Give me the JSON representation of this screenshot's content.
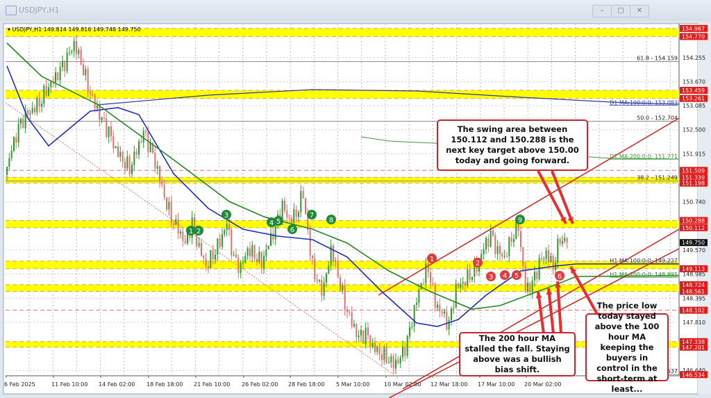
{
  "window": {
    "title": "USDJPY,H1",
    "buttons": [
      "minimize",
      "maximize",
      "close"
    ]
  },
  "header": {
    "symbol": "USDJPY,H1",
    "ohlc": "149.814 149.816 149.748 149.750"
  },
  "colors": {
    "band": "#ffff00",
    "level_label": "#e21b1b",
    "ma100": "#1e2bc8",
    "ma200": "#1f8a1f",
    "channel": "#d62020",
    "bull": "#2a9a2a",
    "bear": "#e07070",
    "marker_green": "#1f8a3a",
    "marker_red": "#e33b3b"
  },
  "chart_data": {
    "type": "candlestick",
    "title": "",
    "x_ticks": [
      "6 Feb 2025",
      "11 Feb 10:00",
      "14 Feb 02:00",
      "18 Feb 18:00",
      "21 Feb 10:00",
      "26 Feb 02:00",
      "28 Feb 18:00",
      "5 Mar 10:00",
      "10 Mar 02:00",
      "12 Mar 18:00",
      "17 Mar 10:00",
      "20 Mar 02:00"
    ],
    "y_ticks": [
      "154.255",
      "153.670",
      "153.085",
      "152.500",
      "151.915",
      "150.740",
      "149.570",
      "148.985",
      "148.395",
      "147.810",
      "146.640"
    ],
    "ylim": [
      146.5,
      155.1
    ],
    "approx_closes": [
      151.4,
      152.0,
      152.5,
      152.8,
      153.0,
      153.2,
      153.5,
      153.7,
      153.9,
      154.2,
      154.6,
      154.2,
      153.6,
      153.1,
      152.7,
      152.4,
      152.0,
      151.8,
      151.6,
      152.0,
      152.4,
      152.0,
      151.5,
      150.9,
      150.4,
      150.1,
      149.7,
      150.2,
      149.6,
      149.2,
      149.5,
      149.8,
      150.2,
      149.3,
      149.1,
      149.6,
      149.5,
      149.3,
      149.7,
      150.1,
      150.6,
      150.3,
      150.5,
      151.0,
      149.5,
      148.7,
      148.6,
      149.6,
      149.0,
      148.3,
      147.8,
      147.4,
      147.5,
      147.2,
      147.1,
      147.0,
      146.8,
      146.9,
      147.3,
      148.1,
      148.8,
      149.2,
      148.3,
      148.0,
      147.7,
      148.6,
      148.8,
      149.0,
      149.2,
      149.6,
      149.9,
      149.5,
      149.4,
      149.9,
      150.2,
      148.6,
      148.7,
      149.2,
      149.5,
      149.2,
      149.9,
      149.75
    ],
    "current_price": "149.750",
    "bands": [
      [
        "154.967",
        "154.770"
      ],
      [
        "153.459",
        "153.261"
      ],
      [
        "151.339",
        "151.198"
      ],
      [
        "150.288",
        "150.112"
      ],
      [
        "149.300",
        "149.113"
      ],
      [
        "148.724",
        "148.561"
      ],
      [
        "147.338",
        "147.201"
      ]
    ],
    "dashed_levels": [
      "151.509",
      "148.102"
    ],
    "fib_levels": [
      {
        "label": "61.8 - 154.159",
        "price": 154.159
      },
      {
        "label": "50.0 - 152.704",
        "price": 152.704
      },
      {
        "label": "38.2 - 151.249",
        "price": 151.249
      },
      {
        "label": ".537",
        "price": 146.537
      }
    ],
    "level_labels": [
      "154.967",
      "154.770",
      "153.459",
      "153.261",
      "151.509",
      "151.339",
      "151.198",
      "150.288",
      "150.112",
      "149.113",
      "148.724",
      "148.561",
      "148.102",
      "147.338",
      "147.201",
      "146.534"
    ],
    "ma_labels": [
      {
        "label": "D1 MA:100:0:0: 153.083",
        "price": 153.083,
        "color": "#2a37b0"
      },
      {
        "label": "D1 MA:200:0:0: 151.771",
        "price": 151.771,
        "color": "#3a9a3a"
      },
      {
        "label": "H1 MA:100:0:0: 149.227",
        "price": 149.227,
        "color": "#1e2bc8"
      },
      {
        "label": "H1 MA:200:0:0: 148.895",
        "price": 148.895,
        "color": "#1f8a1f"
      }
    ],
    "green_markers": [
      "1",
      "2",
      "3",
      "4",
      "5",
      "6",
      "7",
      "8",
      "9"
    ],
    "red_markers": [
      "1",
      "2",
      "3",
      "4",
      "5",
      "6"
    ]
  },
  "annotations": [
    "The swing area between 150.112 and 150.288 is the next key target above 150.00 today and going forward.",
    "The 200 hour MA stalled the fall.  Staying above was a bullish bias shift.",
    "The price low today stayed above the 100 hour MA keeping the buyers in control in the short-term at least..."
  ]
}
